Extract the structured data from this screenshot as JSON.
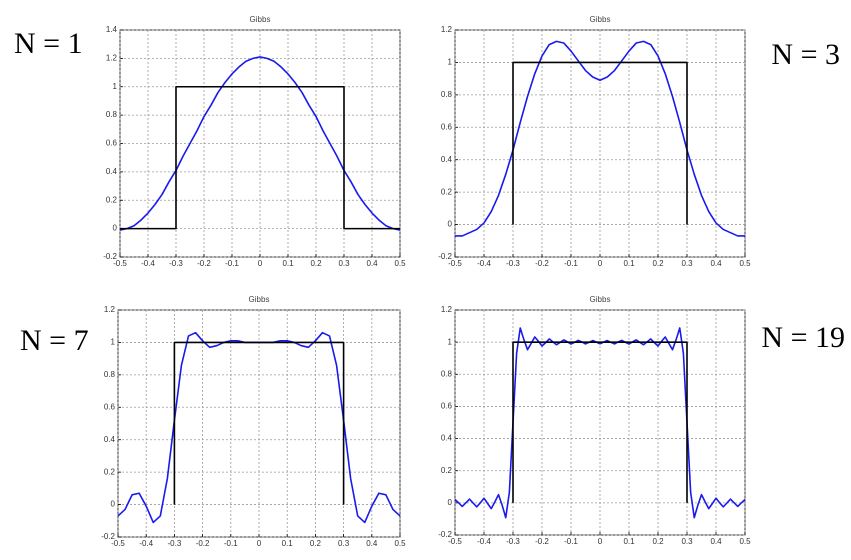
{
  "chart_data": [
    {
      "type": "line",
      "title": "Gibbs",
      "annotation": "N = 1",
      "xlim": [
        -0.5,
        0.5
      ],
      "xticks": [
        -0.5,
        -0.4,
        -0.3,
        -0.2,
        -0.1,
        0,
        0.1,
        0.2,
        0.3,
        0.4,
        0.5
      ],
      "ylim": [
        -0.2,
        1.4
      ],
      "yticks": [
        -0.2,
        0,
        0.2,
        0.4,
        0.6,
        0.8,
        1,
        1.2,
        1.4
      ],
      "grid": true,
      "series": [
        {
          "color": "#1a1aee",
          "x": [
            -0.5,
            -0.475,
            -0.45,
            -0.425,
            -0.4,
            -0.375,
            -0.35,
            -0.325,
            -0.3,
            -0.275,
            -0.25,
            -0.225,
            -0.2,
            -0.175,
            -0.15,
            -0.125,
            -0.1,
            -0.075,
            -0.05,
            -0.025,
            0,
            0.025,
            0.05,
            0.075,
            0.1,
            0.125,
            0.15,
            0.175,
            0.2,
            0.225,
            0.25,
            0.275,
            0.3,
            0.325,
            0.35,
            0.375,
            0.4,
            0.425,
            0.45,
            0.475,
            0.5
          ],
          "values": [
            -0.01,
            0,
            0.02,
            0.06,
            0.11,
            0.17,
            0.24,
            0.33,
            0.41,
            0.51,
            0.6,
            0.69,
            0.79,
            0.87,
            0.96,
            1.03,
            1.09,
            1.14,
            1.18,
            1.2,
            1.21,
            1.2,
            1.18,
            1.14,
            1.09,
            1.03,
            0.96,
            0.87,
            0.79,
            0.69,
            0.6,
            0.51,
            0.41,
            0.33,
            0.24,
            0.17,
            0.11,
            0.06,
            0.02,
            0,
            -0.01
          ]
        },
        {
          "color": "#000000",
          "x": [
            -0.5,
            -0.3,
            -0.3,
            0.3,
            0.3,
            0.5
          ],
          "values": [
            0,
            0,
            1,
            1,
            0,
            0
          ]
        }
      ]
    },
    {
      "type": "line",
      "title": "Gibbs",
      "annotation": "N = 3",
      "xlim": [
        -0.5,
        0.5
      ],
      "xticks": [
        -0.5,
        -0.4,
        -0.3,
        -0.2,
        -0.1,
        0,
        0.1,
        0.2,
        0.3,
        0.4,
        0.5
      ],
      "ylim": [
        -0.2,
        1.2
      ],
      "yticks": [
        -0.2,
        0,
        0.2,
        0.4,
        0.6,
        0.8,
        1,
        1.2
      ],
      "grid": true,
      "series": [
        {
          "color": "#1a1aee",
          "x": [
            -0.5,
            -0.475,
            -0.45,
            -0.425,
            -0.4,
            -0.375,
            -0.35,
            -0.325,
            -0.3,
            -0.275,
            -0.25,
            -0.225,
            -0.2,
            -0.175,
            -0.15,
            -0.125,
            -0.1,
            -0.075,
            -0.05,
            -0.025,
            0,
            0.025,
            0.05,
            0.075,
            0.1,
            0.125,
            0.15,
            0.175,
            0.2,
            0.225,
            0.25,
            0.275,
            0.3,
            0.325,
            0.35,
            0.375,
            0.4,
            0.425,
            0.45,
            0.475,
            0.5
          ],
          "values": [
            -0.07,
            -0.07,
            -0.05,
            -0.03,
            0.01,
            0.08,
            0.18,
            0.31,
            0.46,
            0.63,
            0.79,
            0.93,
            1.04,
            1.11,
            1.13,
            1.12,
            1.07,
            1.01,
            0.95,
            0.91,
            0.89,
            0.91,
            0.95,
            1.01,
            1.07,
            1.12,
            1.13,
            1.11,
            1.04,
            0.93,
            0.79,
            0.63,
            0.46,
            0.31,
            0.18,
            0.08,
            0.01,
            -0.03,
            -0.05,
            -0.07,
            -0.07
          ]
        },
        {
          "color": "#000000",
          "x": [
            -0.3,
            -0.3,
            0.3,
            0.3
          ],
          "values": [
            0,
            1,
            1,
            0
          ]
        }
      ]
    },
    {
      "type": "line",
      "title": "Gibbs",
      "annotation": "N = 7",
      "xlim": [
        -0.5,
        0.5
      ],
      "xticks": [
        -0.5,
        -0.4,
        -0.3,
        -0.2,
        -0.1,
        0,
        0.1,
        0.2,
        0.3,
        0.4,
        0.5
      ],
      "ylim": [
        -0.2,
        1.2
      ],
      "yticks": [
        -0.2,
        0,
        0.2,
        0.4,
        0.6,
        0.8,
        1,
        1.2
      ],
      "grid": true,
      "series": [
        {
          "color": "#1a1aee",
          "x": [
            -0.5,
            -0.475,
            -0.45,
            -0.425,
            -0.4,
            -0.375,
            -0.35,
            -0.325,
            -0.3,
            -0.275,
            -0.25,
            -0.225,
            -0.2,
            -0.175,
            -0.15,
            -0.125,
            -0.1,
            -0.075,
            -0.05,
            -0.025,
            0,
            0.025,
            0.05,
            0.075,
            0.1,
            0.125,
            0.15,
            0.175,
            0.2,
            0.225,
            0.25,
            0.275,
            0.3,
            0.325,
            0.35,
            0.375,
            0.4,
            0.425,
            0.45,
            0.475,
            0.5
          ],
          "values": [
            -0.07,
            -0.03,
            0.06,
            0.07,
            -0.01,
            -0.11,
            -0.07,
            0.16,
            0.52,
            0.86,
            1.04,
            1.06,
            1.01,
            0.97,
            0.98,
            1,
            1.01,
            1.01,
            1,
            1,
            1,
            1,
            1,
            1.01,
            1.01,
            1,
            0.98,
            0.97,
            1.01,
            1.06,
            1.04,
            0.86,
            0.52,
            0.16,
            -0.07,
            -0.11,
            -0.01,
            0.07,
            0.06,
            -0.03,
            -0.07
          ]
        },
        {
          "color": "#000000",
          "x": [
            -0.3,
            -0.3,
            0.3,
            0.3
          ],
          "values": [
            0,
            1,
            1,
            0
          ]
        }
      ]
    },
    {
      "type": "line",
      "title": "Gibbs",
      "annotation": "N = 19",
      "xlim": [
        -0.5,
        0.5
      ],
      "xticks": [
        -0.5,
        -0.4,
        -0.3,
        -0.2,
        -0.1,
        0,
        0.1,
        0.2,
        0.3,
        0.4,
        0.5
      ],
      "ylim": [
        -0.2,
        1.2
      ],
      "yticks": [
        -0.2,
        0,
        0.2,
        0.4,
        0.6,
        0.8,
        1,
        1.2
      ],
      "grid": true,
      "series": [
        {
          "color": "#1a1aee",
          "x": [
            -0.5,
            -0.4875,
            -0.475,
            -0.4625,
            -0.45,
            -0.4375,
            -0.425,
            -0.4125,
            -0.4,
            -0.3875,
            -0.375,
            -0.3625,
            -0.35,
            -0.3375,
            -0.325,
            -0.3125,
            -0.3,
            -0.2875,
            -0.275,
            -0.2625,
            -0.25,
            -0.2375,
            -0.225,
            -0.2125,
            -0.2,
            -0.1875,
            -0.175,
            -0.1625,
            -0.15,
            -0.1375,
            -0.125,
            -0.1125,
            -0.1,
            -0.0875,
            -0.075,
            -0.0625,
            -0.05,
            -0.0375,
            -0.025,
            -0.0125,
            0,
            0.0125,
            0.025,
            0.0375,
            0.05,
            0.0625,
            0.075,
            0.0875,
            0.1,
            0.1125,
            0.125,
            0.1375,
            0.15,
            0.1625,
            0.175,
            0.1875,
            0.2,
            0.2125,
            0.225,
            0.2375,
            0.25,
            0.2625,
            0.275,
            0.2875,
            0.3,
            0.3125,
            0.325,
            0.3375,
            0.35,
            0.3625,
            0.375,
            0.3875,
            0.4,
            0.4125,
            0.425,
            0.4375,
            0.45,
            0.4625,
            0.475,
            0.4875,
            0.5
          ],
          "values": [
            0.021,
            0,
            -0.022,
            0,
            0.023,
            -0.001,
            -0.025,
            0.001,
            0.029,
            -0.004,
            -0.036,
            0.006,
            0.051,
            -0.014,
            -0.092,
            0.067,
            0.5,
            0.931,
            1.088,
            1.016,
            0.953,
            0.992,
            1.032,
            1.006,
            0.976,
            0.997,
            1.02,
            1.002,
            0.984,
            0.998,
            1.014,
            1.002,
            0.988,
            0.999,
            1.011,
            1.001,
            0.989,
            0.999,
            1.01,
            1,
            0.99,
            1,
            1.01,
            0.999,
            0.989,
            1.001,
            1.011,
            0.999,
            0.988,
            1.002,
            1.014,
            0.998,
            0.984,
            1.002,
            1.02,
            0.997,
            0.976,
            1.006,
            1.032,
            0.992,
            0.953,
            1.016,
            1.088,
            0.931,
            0.5,
            0.067,
            -0.092,
            -0.014,
            0.051,
            0.006,
            -0.036,
            -0.004,
            0.029,
            0.001,
            -0.025,
            -0.001,
            0.023,
            0,
            -0.022,
            0,
            0.021
          ]
        },
        {
          "color": "#000000",
          "x": [
            -0.3,
            -0.3,
            0.3,
            0.3
          ],
          "values": [
            0,
            1,
            1,
            0
          ]
        }
      ]
    }
  ]
}
